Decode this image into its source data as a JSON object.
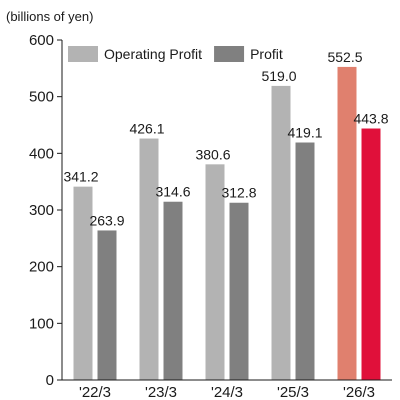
{
  "chart_data": {
    "type": "bar",
    "unit_label": "(billions of yen)",
    "categories": [
      "'22/3",
      "'23/3",
      "'24/3",
      "'25/3",
      "'26/3"
    ],
    "series": [
      {
        "name": "Operating Profit",
        "values": [
          341.2,
          426.1,
          380.6,
          519.0,
          552.5
        ],
        "labels": [
          "341.2",
          "426.1",
          "380.6",
          "519.0",
          "552.5"
        ],
        "color": "#b3b3b3",
        "highlight_color": "#e0806e"
      },
      {
        "name": "Profit",
        "values": [
          263.9,
          314.6,
          312.8,
          419.1,
          443.8
        ],
        "labels": [
          "263.9",
          "314.6",
          "312.8",
          "419.1",
          "443.8"
        ],
        "color": "#808080",
        "highlight_color": "#e0103a"
      }
    ],
    "highlight_index": 4,
    "ylim": [
      0,
      600
    ],
    "yticks": [
      0,
      100,
      200,
      300,
      400,
      500,
      600
    ],
    "grid": false,
    "legend_position": "top-left"
  }
}
